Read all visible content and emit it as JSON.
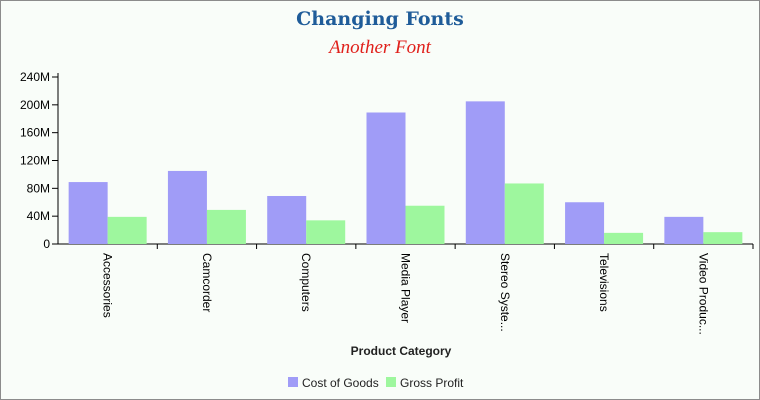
{
  "chart_data": {
    "type": "bar",
    "title": "Changing Fonts",
    "subtitle": "Another Font",
    "xlabel": "Product Category",
    "ylabel": "",
    "categories": [
      "Accessories",
      "Camcorder",
      "Computers",
      "Media Player",
      "Stereo Syste...",
      "Televisions",
      "Video Produc..."
    ],
    "series": [
      {
        "name": "Cost of Goods",
        "values": [
          89,
          105,
          69,
          189,
          205,
          60,
          39
        ]
      },
      {
        "name": "Gross Profit",
        "values": [
          39,
          49,
          34,
          55,
          87,
          16,
          17
        ]
      }
    ],
    "ylim": [
      0,
      240
    ],
    "yticks": [
      "0",
      "40M",
      "80M",
      "120M",
      "160M",
      "200M",
      "240M"
    ],
    "grid": false,
    "legend_position": "bottom-center",
    "colors": {
      "title": "#1f5c99",
      "subtitle": "#e0201b",
      "series": [
        "#a09cf7",
        "#9ef79e"
      ],
      "axis": "#000000"
    }
  }
}
